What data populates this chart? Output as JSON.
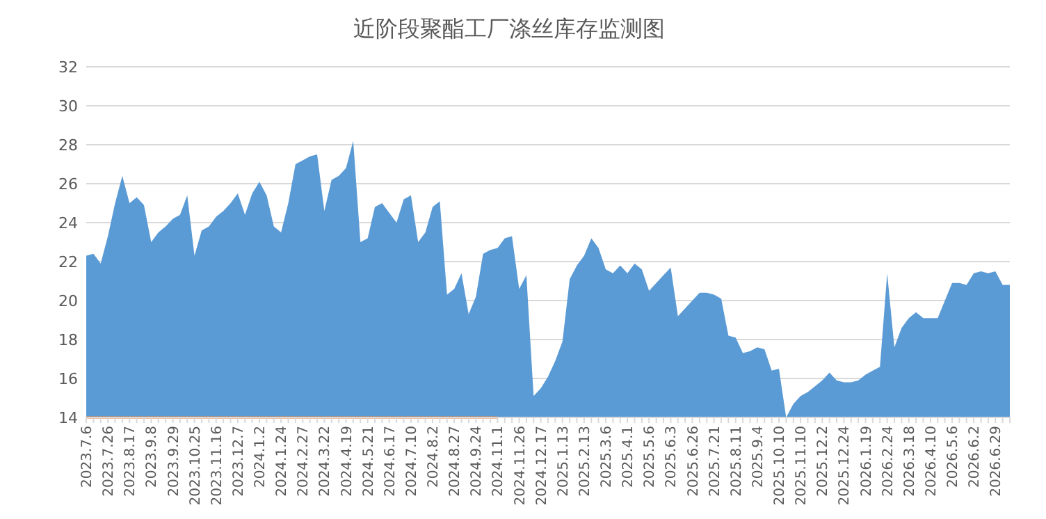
{
  "chart_data": {
    "type": "area",
    "title": "近阶段聚酯工厂涤丝库存监测图",
    "categories": [
      "2023.7.6",
      null,
      null,
      "2023.7.26",
      null,
      null,
      "2023.8.17",
      null,
      null,
      "2023.9.8",
      null,
      null,
      "2023.9.29",
      null,
      null,
      "2023.10.25",
      null,
      null,
      "2023.11.16",
      null,
      null,
      "2023.12.7",
      null,
      null,
      "2024.1.2",
      null,
      null,
      "2024.1.24",
      null,
      null,
      "2024.2.27",
      null,
      null,
      "2024.3.22",
      null,
      null,
      "2024.4.19",
      null,
      null,
      "2024.5.21",
      null,
      null,
      "2024.6.17",
      null,
      null,
      "2024.7.10",
      null,
      null,
      "2024.8.2",
      null,
      null,
      "2024.8.27",
      null,
      null,
      "2024.9.24",
      null,
      null,
      "2024.11.1",
      null,
      null,
      "2024.11.26",
      null,
      null,
      "2024.12.17",
      null,
      null,
      "2025.1.13",
      null,
      null,
      "2025.2.13",
      null,
      null,
      "2025.3.6",
      null,
      null,
      "2025.4.1",
      null,
      null,
      "2025.5.6",
      null,
      null,
      "2025.6.3",
      null,
      null,
      "2025.6.26",
      null,
      null,
      "2025.7.21",
      null,
      null,
      "2025.8.11",
      null,
      null,
      "2025.9.4",
      null,
      null,
      "2025.10.10",
      null,
      null,
      "2025.11.10",
      null,
      null,
      "2025.12.2",
      null,
      null,
      "2025.12.24",
      null,
      null,
      "2026.1.19",
      null,
      null,
      "2026.2.24",
      null,
      null,
      "2026.3.18",
      null,
      null,
      "2026.4.10",
      null,
      null,
      "2026.5.6",
      null,
      null,
      "2026.6.2",
      null,
      null,
      "2026.6.29",
      null,
      null
    ],
    "series": [
      {
        "color": "#5b9bd5",
        "values": [
          22.3,
          22.4,
          21.9,
          23.3,
          25.0,
          26.4,
          25.0,
          25.3,
          24.9,
          23.0,
          23.5,
          23.8,
          24.2,
          24.4,
          25.4,
          22.3,
          23.6,
          23.8,
          24.3,
          24.6,
          25.0,
          25.5,
          24.4,
          25.5,
          26.1,
          25.4,
          23.8,
          23.5,
          25.0,
          27.0,
          27.2,
          27.4,
          27.5,
          24.6,
          26.2,
          26.4,
          26.8,
          28.2,
          23.0,
          23.2,
          24.8,
          25.0,
          24.5,
          24.0,
          25.2,
          25.4,
          23.0,
          23.5,
          24.8,
          25.1,
          20.3,
          20.6,
          21.4,
          19.3,
          20.2,
          22.4,
          22.6,
          22.7,
          23.2,
          23.3,
          20.6,
          21.3,
          15.1,
          15.5,
          16.1,
          16.9,
          17.9,
          21.1,
          21.8,
          22.3,
          23.2,
          22.7,
          21.6,
          21.4,
          21.8,
          21.4,
          21.9,
          21.6,
          20.5,
          20.9,
          21.3,
          21.7,
          19.2,
          19.6,
          20.0,
          20.4,
          20.4,
          20.3,
          20.1,
          18.2,
          18.1,
          17.3,
          17.4,
          17.6,
          17.5,
          16.4,
          16.5,
          14.0,
          14.7,
          15.1,
          15.3,
          15.6,
          15.9,
          16.3,
          15.9,
          15.8,
          15.8,
          15.9,
          16.2,
          16.4,
          16.6,
          21.4,
          17.6,
          18.6,
          19.1,
          19.4,
          19.1,
          19.1,
          19.1,
          20.0,
          20.9,
          20.9,
          20.8,
          21.4,
          21.5,
          21.4,
          21.5,
          20.8,
          20.8
        ]
      },
      {
        "type": "line",
        "color": "#ed7d31",
        "values": [
          14,
          14,
          14,
          14,
          14,
          14,
          14,
          14,
          14,
          14,
          14,
          14,
          14,
          14,
          14,
          14,
          14,
          14,
          14,
          14,
          14,
          14,
          14,
          14,
          14,
          14,
          14,
          14,
          14,
          14,
          14,
          14,
          14,
          14,
          14,
          14,
          14,
          14,
          14,
          14,
          14,
          14,
          14,
          14,
          14,
          14,
          14,
          14,
          14,
          14,
          14,
          14,
          14,
          14,
          14,
          14,
          14,
          14,
          null,
          null,
          null,
          null,
          null,
          null,
          null,
          null,
          null,
          null,
          null,
          null,
          null,
          null,
          null,
          null,
          null,
          null,
          null,
          null,
          null,
          null,
          null,
          null,
          null,
          null,
          null,
          null,
          null,
          null,
          null,
          null,
          null,
          null,
          null,
          null,
          null,
          null,
          null,
          null,
          null,
          null,
          null,
          null,
          null,
          null,
          null,
          null,
          null,
          null,
          null,
          null,
          null,
          null,
          null,
          null,
          null,
          null,
          null,
          null,
          null,
          null,
          null,
          null,
          null,
          null,
          null,
          null,
          null,
          null,
          null
        ]
      }
    ],
    "ylim": [
      14,
      32
    ],
    "yticks": [
      14,
      16,
      18,
      20,
      22,
      24,
      26,
      28,
      30,
      32
    ],
    "grid": "y"
  }
}
